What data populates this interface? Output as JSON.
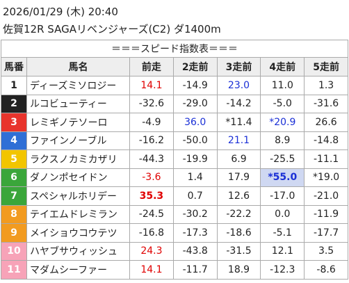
{
  "header": {
    "datetime": "2026/01/29 (木) 20:40",
    "race": "佐賀12R SAGAリベンジャーズ(C2) ダ1400m"
  },
  "table": {
    "title": "＝＝＝スピード指数表＝＝＝",
    "columns": [
      "馬番",
      "馬名",
      "前走",
      "2走前",
      "3走前",
      "4走前",
      "5走前"
    ],
    "rows": [
      [
        "1",
        "ディーズミソロジー",
        "14.1",
        "-14.9",
        "23.0",
        "11.0",
        "1.3"
      ],
      [
        "2",
        "ルコビューティー",
        "-32.6",
        "-29.0",
        "-14.2",
        "-5.0",
        "-31.6"
      ],
      [
        "3",
        "レミギノテソーロ",
        "-4.9",
        "36.0",
        "*11.4",
        "*20.9",
        "26.6"
      ],
      [
        "4",
        "ファインノーブル",
        "-16.2",
        "-50.0",
        "21.1",
        "8.9",
        "-14.8"
      ],
      [
        "5",
        "ラクスノカミカザリ",
        "-44.3",
        "-19.9",
        "6.9",
        "-25.5",
        "-11.1"
      ],
      [
        "6",
        "ダノンポセイドン",
        "-3.6",
        "1.4",
        "17.9",
        "*55.0",
        "*19.0"
      ],
      [
        "7",
        "スペシャルホリデー",
        "35.3",
        "0.7",
        "12.6",
        "-17.0",
        "-21.0"
      ],
      [
        "8",
        "テイエムドレミラン",
        "-24.5",
        "-30.2",
        "-22.2",
        "0.0",
        "-11.9"
      ],
      [
        "9",
        "メイショウコウテツ",
        "-16.8",
        "-17.3",
        "-18.6",
        "-5.1",
        "-17.7"
      ],
      [
        "10",
        "ハヤブサウィッシュ",
        "24.3",
        "-43.8",
        "-31.5",
        "12.1",
        "3.5"
      ],
      [
        "11",
        "マダムシーファー",
        "14.1",
        "-11.7",
        "18.9",
        "-12.3",
        "-8.6"
      ]
    ]
  }
}
